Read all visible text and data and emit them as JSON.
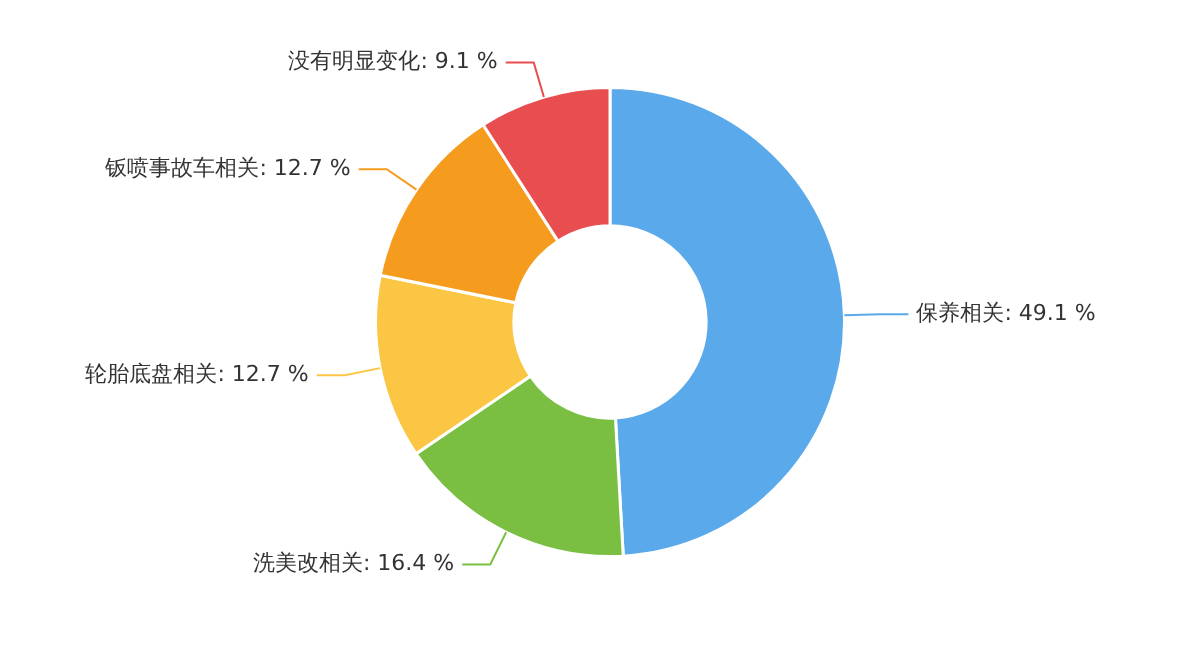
{
  "chart_data": {
    "type": "donut",
    "categories": [
      "保养相关",
      "洗美改相关",
      "轮胎底盘相关",
      "钣喷事故车相关",
      "没有明显变化"
    ],
    "values": [
      49.1,
      16.4,
      12.7,
      12.7,
      9.1
    ],
    "colors": [
      "#5aa9ea",
      "#7bbf42",
      "#fcc645",
      "#f59c1f",
      "#e84d4f"
    ],
    "value_labels": [
      "49.1 %",
      "16.4 %",
      "12.7 %",
      "12.7 %",
      "9.1 %"
    ],
    "legend": false
  }
}
